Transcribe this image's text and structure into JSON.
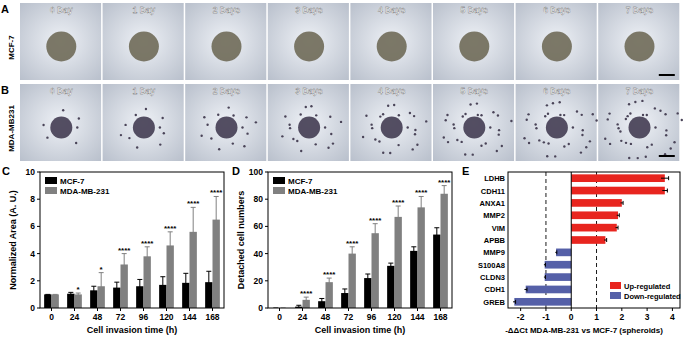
{
  "image_panels": {
    "days": [
      "0 Day",
      "1 Day",
      "2 Days",
      "3 Days",
      "4 Days",
      "5 Days",
      "6 Days",
      "7 Days"
    ],
    "rows": [
      {
        "panel": "A",
        "label": "MCF-7"
      },
      {
        "panel": "B",
        "label": "MDA-MB231"
      }
    ]
  },
  "chart_data": [
    {
      "panel": "C",
      "type": "bar",
      "categories": [
        "0",
        "24",
        "48",
        "72",
        "96",
        "120",
        "144",
        "168"
      ],
      "x_label": "Cell invasion time (h)",
      "y_label": "Normalized Area (A. U.)",
      "ylim": [
        0,
        10
      ],
      "yticks": [
        0,
        2,
        4,
        6,
        8,
        10
      ],
      "legend": "upper-left",
      "series": [
        {
          "name": "MCF-7",
          "color": "#000000",
          "values": [
            1,
            1.05,
            1.3,
            1.5,
            1.6,
            1.7,
            1.85,
            1.9
          ],
          "errors": [
            0,
            0.1,
            0.3,
            0.4,
            0.5,
            0.6,
            0.7,
            0.8
          ]
        },
        {
          "name": "MDA-MB-231",
          "color": "#808080",
          "values": [
            1,
            1.0,
            1.6,
            3.2,
            3.8,
            4.6,
            5.6,
            6.5
          ],
          "errors": [
            0,
            0.1,
            1.0,
            0.8,
            0.7,
            1.0,
            1.8,
            1.7
          ]
        }
      ],
      "annotations": [
        null,
        "*",
        "*",
        "****",
        "****",
        "****",
        "****",
        "****"
      ]
    },
    {
      "panel": "D",
      "type": "bar",
      "categories": [
        "0",
        "24",
        "48",
        "72",
        "96",
        "120",
        "144",
        "168"
      ],
      "x_label": "Cell invasion time (h)",
      "y_label": "Detached cell numbers",
      "ylim": [
        0,
        100
      ],
      "yticks": [
        0,
        20,
        40,
        60,
        80,
        100
      ],
      "legend": "upper-left",
      "series": [
        {
          "name": "MCF-7",
          "color": "#000000",
          "values": [
            0,
            1,
            5,
            11,
            22,
            31,
            42,
            54
          ],
          "errors": [
            0,
            1,
            2,
            3,
            3,
            2,
            3,
            5
          ]
        },
        {
          "name": "MDA-MB-231",
          "color": "#808080",
          "values": [
            0,
            6,
            19,
            40,
            55,
            67,
            74,
            84
          ],
          "errors": [
            0,
            2,
            3,
            5,
            7,
            8,
            8,
            6
          ]
        }
      ],
      "annotations": [
        null,
        "****",
        "****",
        "****",
        "****",
        "****",
        "****",
        "****"
      ]
    },
    {
      "panel": "E",
      "type": "bar",
      "orientation": "horizontal",
      "categories": [
        "LDHB",
        "CDH11",
        "ANXA1",
        "MMP2",
        "VIM",
        "APBB",
        "MMP9",
        "S100A8",
        "CLDN3",
        "CDH1",
        "GREB"
      ],
      "x_label": "-ΔΔCt MDA-MB-231 vs MCF-7 (spheroids)",
      "xlim": [
        -2.5,
        4.3
      ],
      "xticks": [
        -2,
        -1,
        0,
        1,
        2,
        3,
        4
      ],
      "thresholds": [
        -1,
        1
      ],
      "legend": "lower-right",
      "series": [
        {
          "name": "Up-regulated",
          "color": "#e8251f",
          "values": [
            3.7,
            3.7,
            2.0,
            1.85,
            1.8,
            1.35,
            null,
            null,
            null,
            null,
            null
          ],
          "errors": [
            0.15,
            0.1,
            0.05,
            0.05,
            0.05,
            0.05,
            null,
            null,
            null,
            null,
            null
          ]
        },
        {
          "name": "Down-regulated",
          "color": "#5560a8",
          "values": [
            null,
            null,
            null,
            null,
            null,
            null,
            -0.6,
            -1.05,
            -1.05,
            -1.8,
            -2.25
          ],
          "errors": [
            null,
            null,
            null,
            null,
            null,
            null,
            0.03,
            0.03,
            0.03,
            0.05,
            0.05
          ]
        }
      ]
    }
  ]
}
